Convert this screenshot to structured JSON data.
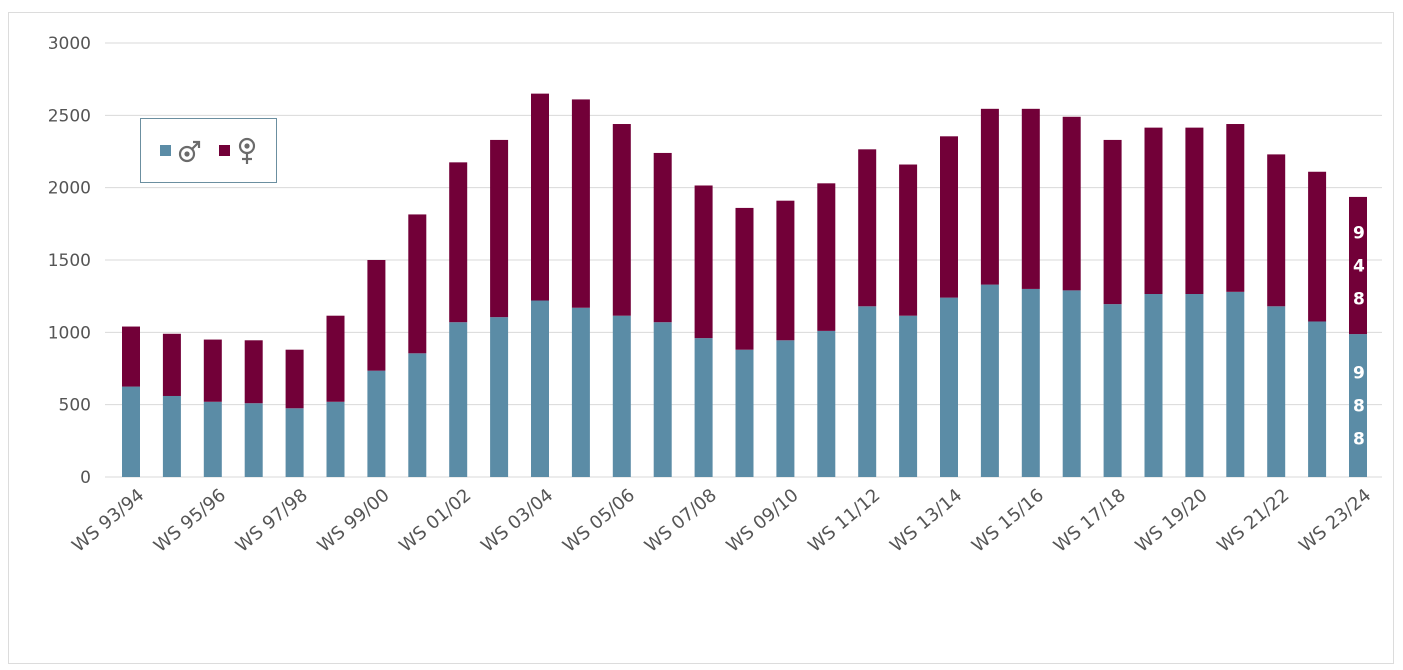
{
  "colors": {
    "male": "#5b8ca6",
    "female": "#720038",
    "grid": "#d9d9d9",
    "axis_text": "#555555"
  },
  "legend": {
    "items": [
      {
        "icon": "male-symbol-icon",
        "color": "#5b8ca6"
      },
      {
        "icon": "female-symbol-icon",
        "color": "#720038"
      }
    ]
  },
  "chart_data": {
    "type": "bar",
    "stacked": true,
    "title": "",
    "xlabel": "",
    "ylabel": "",
    "ylim": [
      0,
      3000
    ],
    "yticks": [
      0,
      500,
      1000,
      1500,
      2000,
      2500,
      3000
    ],
    "grid": true,
    "legend_position": "top-left",
    "categories": [
      "WS 93/94",
      "WS 94/95",
      "WS 95/96",
      "WS 96/97",
      "WS 97/98",
      "WS 98/99",
      "WS 99/00",
      "WS 00/01",
      "WS 01/02",
      "WS 02/03",
      "WS 03/04",
      "WS 04/05",
      "WS 05/06",
      "WS 06/07",
      "WS 07/08",
      "WS 08/09",
      "WS 09/10",
      "WS 10/11",
      "WS 11/12",
      "WS 12/13",
      "WS 13/14",
      "WS 14/15",
      "WS 15/16",
      "WS 16/17",
      "WS 17/18",
      "WS 18/19",
      "WS 19/20",
      "WS 20/21",
      "WS 21/22",
      "WS 22/23",
      "WS 23/24"
    ],
    "x_tick_labels": [
      "WS 93/94",
      "WS 95/96",
      "WS 97/98",
      "WS 99/00",
      "WS 01/02",
      "WS 03/04",
      "WS 05/06",
      "WS 07/08",
      "WS 09/10",
      "WS 11/12",
      "WS 13/14",
      "WS 15/16",
      "WS 17/18",
      "WS 19/20",
      "WS 21/22",
      "WS 23/24"
    ],
    "series": [
      {
        "values": [
          625,
          560,
          520,
          510,
          475,
          520,
          735,
          855,
          1070,
          1105,
          1220,
          1170,
          1115,
          1070,
          960,
          880,
          945,
          1010,
          1180,
          1115,
          1240,
          1330,
          1300,
          1290,
          1195,
          1265,
          1265,
          1280,
          1180,
          1075,
          988
        ]
      },
      {
        "values": [
          415,
          430,
          430,
          435,
          405,
          595,
          765,
          960,
          1105,
          1225,
          1430,
          1440,
          1325,
          1170,
          1055,
          980,
          965,
          1020,
          1085,
          1045,
          1115,
          1215,
          1245,
          1200,
          1135,
          1150,
          1150,
          1160,
          1050,
          1035,
          948
        ]
      }
    ],
    "data_labels": [
      {
        "category": "WS 23/24",
        "series": 0,
        "text": [
          "9",
          "8",
          "8"
        ]
      },
      {
        "category": "WS 23/24",
        "series": 1,
        "text": [
          "9",
          "4",
          "8"
        ]
      }
    ]
  }
}
